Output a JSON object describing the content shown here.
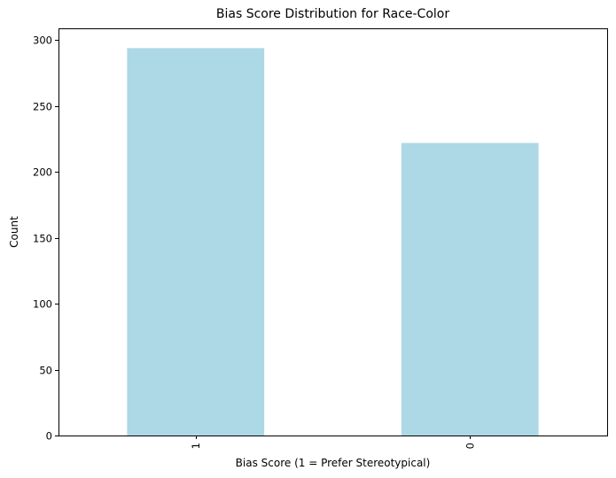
{
  "chart_data": {
    "type": "bar",
    "title": "Bias Score Distribution for Race-Color",
    "xlabel": "Bias Score (1 = Prefer Stereotypical)",
    "ylabel": "Count",
    "categories": [
      "1",
      "0"
    ],
    "values": [
      294,
      222
    ],
    "ylim": [
      0,
      309
    ],
    "yticks": [
      0,
      50,
      100,
      150,
      200,
      250,
      300
    ],
    "xtick_rotation": 90,
    "bar_color": "#add8e6",
    "grid": false,
    "legend": "none"
  }
}
